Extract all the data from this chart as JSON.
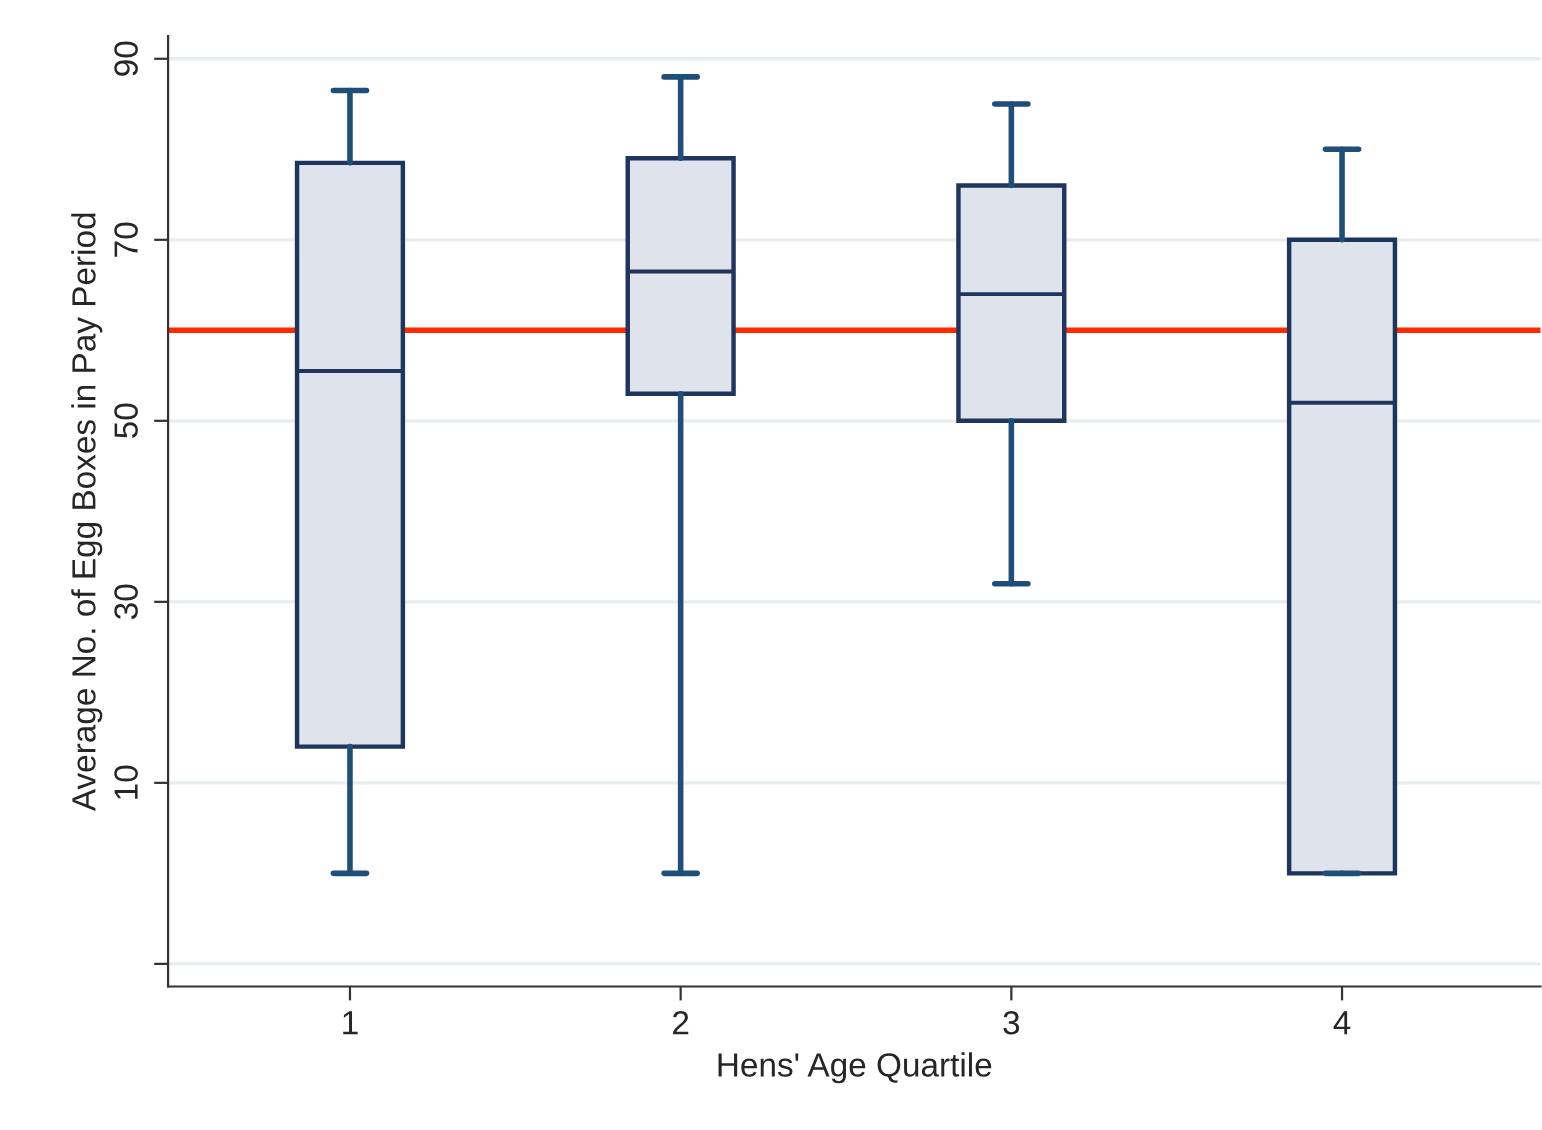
{
  "chart_data": {
    "type": "box",
    "xlabel": "Hens' Age Quartile",
    "ylabel": "Average No. of Egg Boxes in Pay Period",
    "categories": [
      "1",
      "2",
      "3",
      "4"
    ],
    "boxes": [
      {
        "low": 0,
        "q1": 14,
        "median": 55.5,
        "q3": 78.5,
        "high": 86.5
      },
      {
        "low": 0,
        "q1": 53,
        "median": 66.5,
        "q3": 79,
        "high": 88
      },
      {
        "low": 32,
        "q1": 50,
        "median": 64,
        "q3": 76,
        "high": 85
      },
      {
        "low": 0,
        "q1": 0,
        "median": 52,
        "q3": 70,
        "high": 80
      }
    ],
    "color": "#dfe3ec",
    "ylim": [
      -12.5,
      92.5
    ],
    "yticks": [
      {
        "value": -10,
        "label": null
      },
      10,
      30,
      50,
      70,
      90
    ],
    "ref_lines": [
      {
        "axis": "y",
        "value": 60,
        "color": "#ff2a00"
      }
    ],
    "grid": "y",
    "legend": false
  }
}
